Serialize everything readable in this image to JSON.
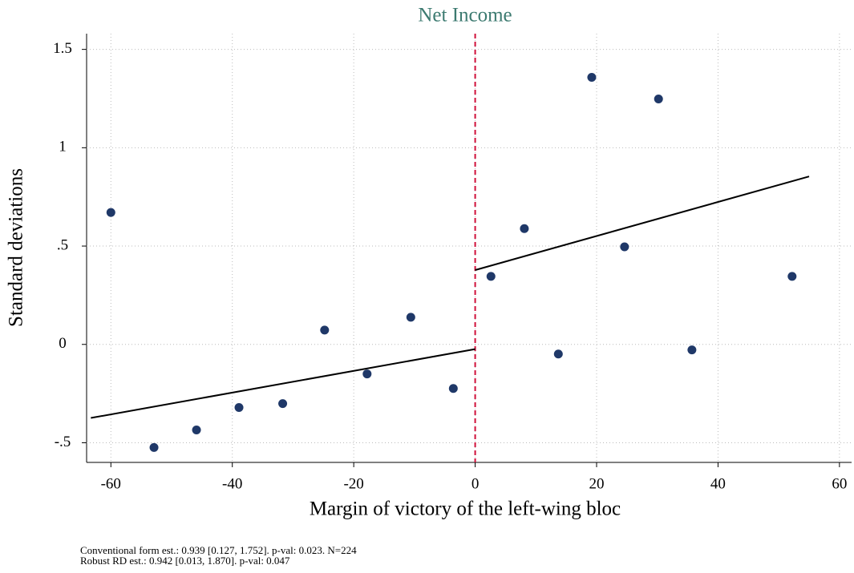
{
  "chart_data": {
    "type": "scatter",
    "title": "Net Income",
    "xlabel": "Margin of victory of the left-wing bloc",
    "ylabel": "Standard deviations",
    "x": [
      -60,
      -52.9,
      -45.9,
      -38.9,
      -31.7,
      -24.8,
      -17.8,
      -10.6,
      -3.6,
      2.6,
      8.1,
      13.7,
      19.2,
      24.6,
      30.2,
      35.7,
      52.2
    ],
    "y": [
      0.671,
      -0.524,
      -0.435,
      -0.321,
      -0.301,
      0.073,
      -0.15,
      0.138,
      -0.224,
      0.346,
      0.589,
      -0.049,
      1.358,
      0.496,
      1.248,
      -0.028,
      0.346
    ],
    "color": "#1f3868",
    "fit_lines": [
      {
        "x": [
          -63.3,
          0
        ],
        "y": [
          -0.374,
          -0.024
        ],
        "color": "#000000"
      },
      {
        "x": [
          0,
          55
        ],
        "y": [
          0.378,
          0.854
        ],
        "color": "#000000"
      }
    ],
    "cutoff_x": 0,
    "cutoff_color": "#d0103a",
    "xlim": [
      -64,
      62
    ],
    "ylim": [
      -0.6,
      1.58
    ],
    "xticks": [
      -60,
      -40,
      -20,
      0,
      20,
      40,
      60
    ],
    "yticks": [
      {
        "value": -0.5,
        "label": "-.5"
      },
      0,
      {
        "value": 0.5,
        "label": ".5"
      },
      1,
      1.5
    ],
    "grid": true,
    "notes": [
      "Conventional form est.: 0.939 [0.127, 1.752]. p-val: 0.023. N=224",
      "Robust RD est.: 0.942 [0.013, 1.870]. p-val: 0.047"
    ]
  }
}
